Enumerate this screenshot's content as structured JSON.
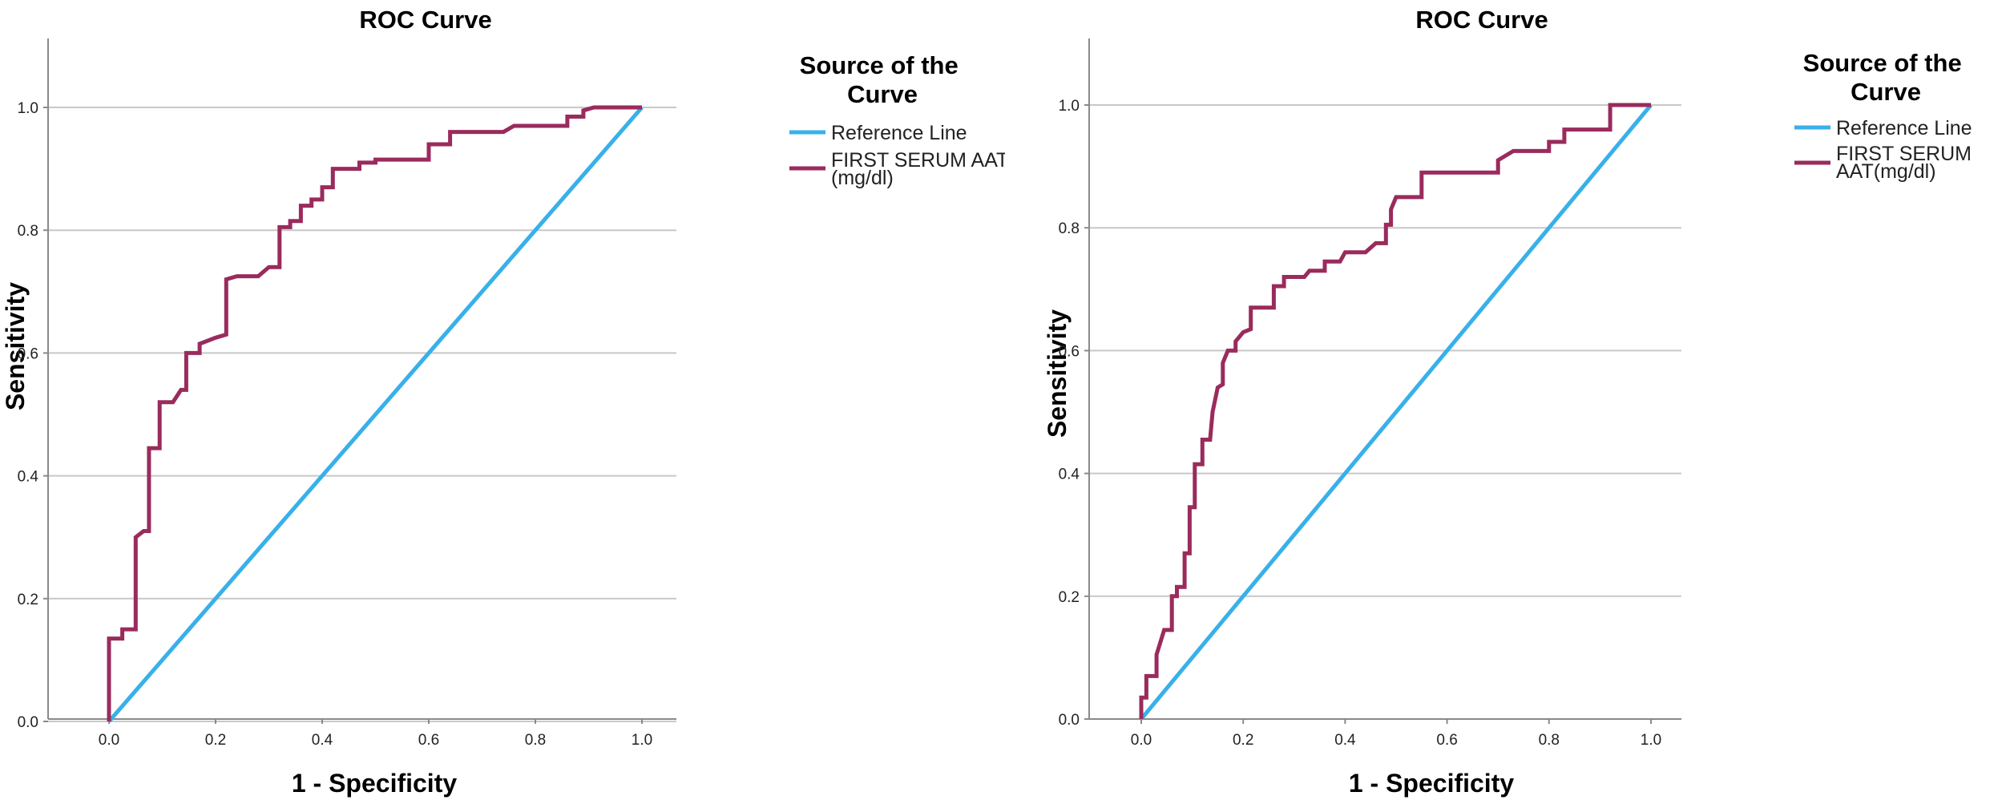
{
  "chart_data": [
    {
      "type": "line",
      "title": "ROC Curve",
      "xlabel": "1 - Specificity",
      "ylabel": "Sensitivity",
      "xlim": [
        0,
        1
      ],
      "ylim": [
        0,
        1
      ],
      "xticks": [
        "0.0",
        "0.2",
        "0.4",
        "0.6",
        "0.8",
        "1.0"
      ],
      "yticks": [
        "0.0",
        "0.2",
        "0.4",
        "0.6",
        "0.8",
        "1.0"
      ],
      "grid": "horizontal",
      "legend": {
        "title": "Source of the Curve",
        "position": "right",
        "entries": [
          {
            "label": "Reference Line",
            "color": "#38b0ea"
          },
          {
            "label": "FIRST SERUM AAT (mg/dl)",
            "color": "#9a2b5c"
          }
        ]
      },
      "series": [
        {
          "name": "Reference Line",
          "color": "#38b0ea",
          "points": [
            [
              0,
              0
            ],
            [
              1,
              1
            ]
          ]
        },
        {
          "name": "FIRST SERUM AAT (mg/dl)",
          "color": "#9a2b5c",
          "points": [
            [
              0,
              0
            ],
            [
              0,
              0.135
            ],
            [
              0.025,
              0.135
            ],
            [
              0.025,
              0.15
            ],
            [
              0.05,
              0.15
            ],
            [
              0.05,
              0.3
            ],
            [
              0.065,
              0.31
            ],
            [
              0.075,
              0.31
            ],
            [
              0.075,
              0.445
            ],
            [
              0.095,
              0.445
            ],
            [
              0.095,
              0.52
            ],
            [
              0.12,
              0.52
            ],
            [
              0.135,
              0.54
            ],
            [
              0.145,
              0.54
            ],
            [
              0.145,
              0.6
            ],
            [
              0.17,
              0.6
            ],
            [
              0.17,
              0.615
            ],
            [
              0.2,
              0.625
            ],
            [
              0.22,
              0.63
            ],
            [
              0.22,
              0.72
            ],
            [
              0.24,
              0.725
            ],
            [
              0.28,
              0.725
            ],
            [
              0.3,
              0.74
            ],
            [
              0.32,
              0.74
            ],
            [
              0.32,
              0.805
            ],
            [
              0.34,
              0.805
            ],
            [
              0.34,
              0.815
            ],
            [
              0.36,
              0.815
            ],
            [
              0.36,
              0.84
            ],
            [
              0.38,
              0.84
            ],
            [
              0.38,
              0.85
            ],
            [
              0.4,
              0.85
            ],
            [
              0.4,
              0.87
            ],
            [
              0.42,
              0.87
            ],
            [
              0.42,
              0.9
            ],
            [
              0.47,
              0.9
            ],
            [
              0.47,
              0.91
            ],
            [
              0.5,
              0.91
            ],
            [
              0.5,
              0.915
            ],
            [
              0.6,
              0.915
            ],
            [
              0.6,
              0.94
            ],
            [
              0.64,
              0.94
            ],
            [
              0.64,
              0.96
            ],
            [
              0.74,
              0.96
            ],
            [
              0.76,
              0.97
            ],
            [
              0.86,
              0.97
            ],
            [
              0.86,
              0.985
            ],
            [
              0.89,
              0.985
            ],
            [
              0.89,
              0.995
            ],
            [
              0.91,
              1
            ],
            [
              1,
              1
            ]
          ]
        }
      ]
    },
    {
      "type": "line",
      "title": "ROC Curve",
      "xlabel": "1 - Specificity",
      "ylabel": "Sensitivity",
      "xlim": [
        0,
        1
      ],
      "ylim": [
        0,
        1
      ],
      "xticks": [
        "0.0",
        "0.2",
        "0.4",
        "0.6",
        "0.8",
        "1.0"
      ],
      "yticks": [
        "0.0",
        "0.2",
        "0.4",
        "0.6",
        "0.8",
        "1.0"
      ],
      "grid": "horizontal",
      "legend": {
        "title": "Source of the Curve",
        "position": "right",
        "entries": [
          {
            "label": "Reference Line",
            "color": "#38b0ea"
          },
          {
            "label": "FIRST SERUM AAT(mg/dl)",
            "color": "#9a2b5c"
          }
        ]
      },
      "series": [
        {
          "name": "Reference Line",
          "color": "#38b0ea",
          "points": [
            [
              0,
              0
            ],
            [
              1,
              1
            ]
          ]
        },
        {
          "name": "FIRST SERUM AAT(mg/dl)",
          "color": "#9a2b5c",
          "points": [
            [
              0,
              0
            ],
            [
              0,
              0.035
            ],
            [
              0.01,
              0.035
            ],
            [
              0.01,
              0.07
            ],
            [
              0.03,
              0.07
            ],
            [
              0.03,
              0.105
            ],
            [
              0.045,
              0.145
            ],
            [
              0.06,
              0.145
            ],
            [
              0.06,
              0.2
            ],
            [
              0.07,
              0.2
            ],
            [
              0.07,
              0.215
            ],
            [
              0.085,
              0.215
            ],
            [
              0.085,
              0.27
            ],
            [
              0.095,
              0.27
            ],
            [
              0.095,
              0.345
            ],
            [
              0.105,
              0.345
            ],
            [
              0.105,
              0.415
            ],
            [
              0.12,
              0.415
            ],
            [
              0.12,
              0.455
            ],
            [
              0.135,
              0.455
            ],
            [
              0.14,
              0.5
            ],
            [
              0.15,
              0.54
            ],
            [
              0.16,
              0.545
            ],
            [
              0.16,
              0.58
            ],
            [
              0.17,
              0.6
            ],
            [
              0.185,
              0.6
            ],
            [
              0.185,
              0.615
            ],
            [
              0.2,
              0.63
            ],
            [
              0.215,
              0.635
            ],
            [
              0.215,
              0.67
            ],
            [
              0.26,
              0.67
            ],
            [
              0.26,
              0.705
            ],
            [
              0.28,
              0.705
            ],
            [
              0.28,
              0.72
            ],
            [
              0.32,
              0.72
            ],
            [
              0.33,
              0.73
            ],
            [
              0.36,
              0.73
            ],
            [
              0.36,
              0.745
            ],
            [
              0.39,
              0.745
            ],
            [
              0.4,
              0.76
            ],
            [
              0.44,
              0.76
            ],
            [
              0.46,
              0.775
            ],
            [
              0.48,
              0.775
            ],
            [
              0.48,
              0.805
            ],
            [
              0.49,
              0.805
            ],
            [
              0.49,
              0.83
            ],
            [
              0.5,
              0.85
            ],
            [
              0.55,
              0.85
            ],
            [
              0.55,
              0.89
            ],
            [
              0.7,
              0.89
            ],
            [
              0.7,
              0.91
            ],
            [
              0.73,
              0.925
            ],
            [
              0.8,
              0.925
            ],
            [
              0.8,
              0.94
            ],
            [
              0.83,
              0.94
            ],
            [
              0.83,
              0.96
            ],
            [
              0.92,
              0.96
            ],
            [
              0.92,
              1
            ],
            [
              1,
              1
            ]
          ]
        }
      ]
    }
  ]
}
